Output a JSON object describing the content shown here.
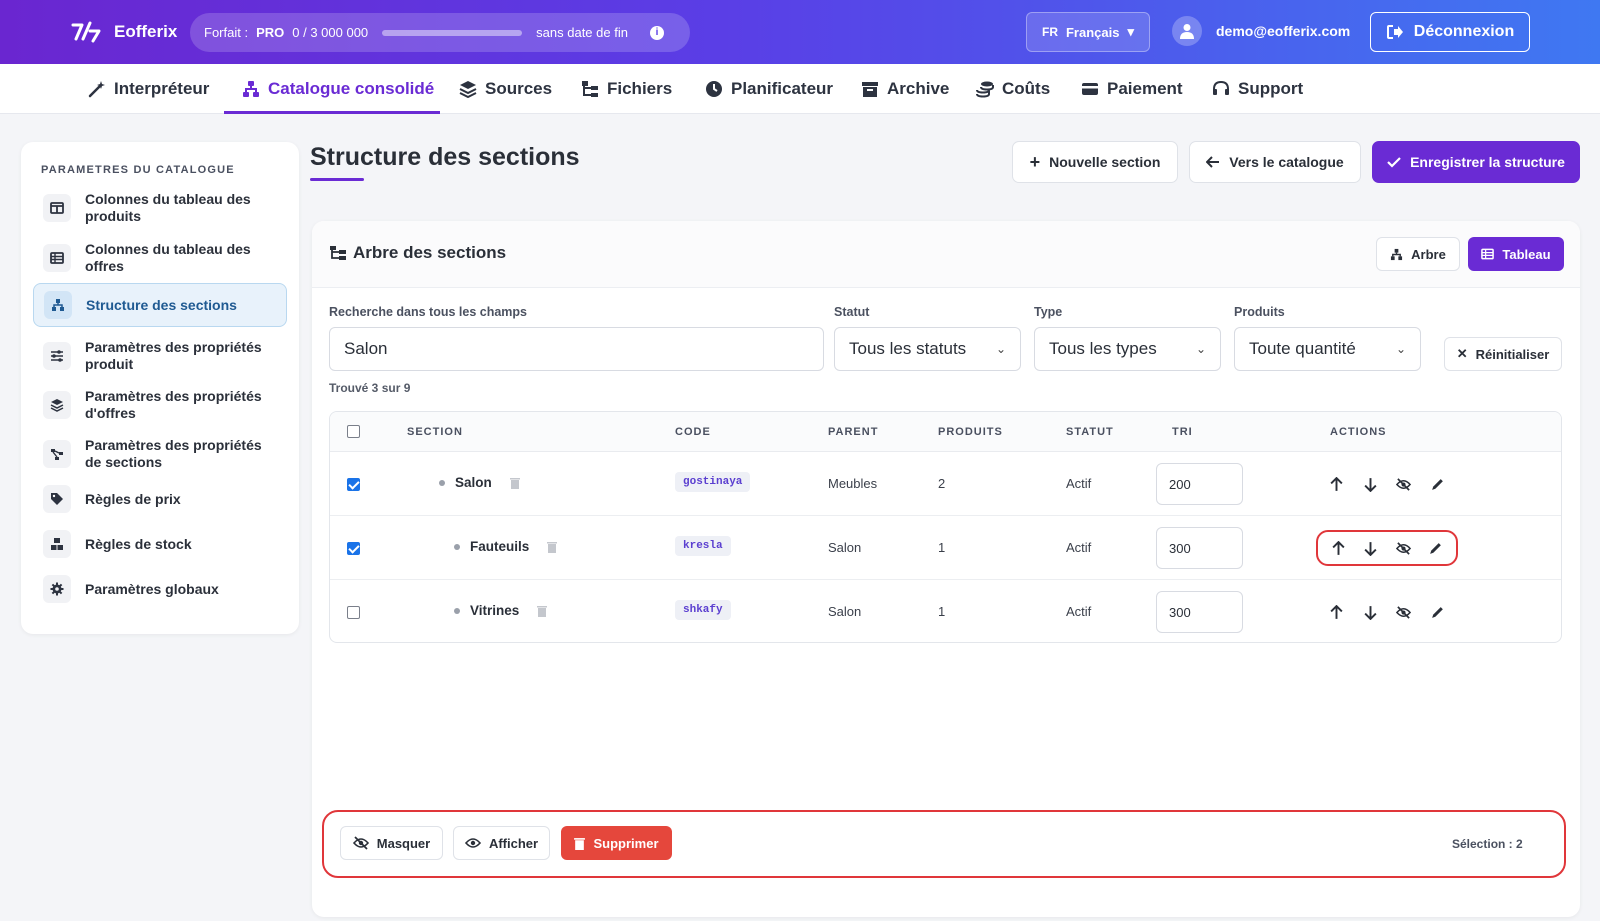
{
  "app": {
    "name": "Eofferix"
  },
  "plan": {
    "label": "Forfait :",
    "tier": "PRO",
    "usage": "0 / 3 000 000",
    "usage_fraction": 0,
    "end": "sans date de fin",
    "info": "i"
  },
  "lang": {
    "code": "FR",
    "name": "Français",
    "caret": "▾"
  },
  "user": {
    "email": "demo@eofferix.com"
  },
  "logout": {
    "label": "Déconnexion"
  },
  "nav": {
    "items": [
      {
        "label": "Interpréteur",
        "icon": "magic-wand-icon"
      },
      {
        "label": "Catalogue consolidé",
        "icon": "sitemap-icon",
        "active": true
      },
      {
        "label": "Sources",
        "icon": "layers-icon"
      },
      {
        "label": "Fichiers",
        "icon": "folder-tree-icon"
      },
      {
        "label": "Planificateur",
        "icon": "clock-icon"
      },
      {
        "label": "Archive",
        "icon": "archive-icon"
      },
      {
        "label": "Coûts",
        "icon": "coins-icon"
      },
      {
        "label": "Paiement",
        "icon": "credit-card-icon"
      },
      {
        "label": "Support",
        "icon": "headset-icon"
      }
    ]
  },
  "sidebar": {
    "heading": "PARAMETRES DU CATALOGUE",
    "items": [
      {
        "label": "Colonnes du tableau des produits",
        "icon": "columns-icon"
      },
      {
        "label": "Colonnes du tableau des offres",
        "icon": "table-list-icon"
      },
      {
        "label": "Structure des sections",
        "icon": "sitemap-icon",
        "active": true
      },
      {
        "label": "Paramètres des propriétés produit",
        "icon": "sliders-icon"
      },
      {
        "label": "Paramètres des propriétés d'offres",
        "icon": "layers-icon"
      },
      {
        "label": "Paramètres des propriétés de sections",
        "icon": "diagram-icon"
      },
      {
        "label": "Règles de prix",
        "icon": "tags-icon"
      },
      {
        "label": "Règles de stock",
        "icon": "boxes-icon"
      },
      {
        "label": "Paramètres globaux",
        "icon": "gear-icon"
      }
    ]
  },
  "header": {
    "title": "Structure des sections",
    "new_section": "Nouvelle section",
    "to_catalog": "Vers le catalogue",
    "save": "Enregistrer la structure"
  },
  "panel": {
    "title": "Arbre des sections",
    "view_tree": "Arbre",
    "view_table": "Tableau"
  },
  "filters": {
    "search_label": "Recherche dans tous les champs",
    "search_value": "Salon",
    "status_label": "Statut",
    "status_value": "Tous les statuts",
    "type_label": "Type",
    "type_value": "Tous les types",
    "products_label": "Produits",
    "products_value": "Toute quantité",
    "reset": "Réinitialiser",
    "found": "Trouvé 3 sur 9"
  },
  "table": {
    "columns": [
      "SECTION",
      "CODE",
      "PARENT",
      "PRODUITS",
      "STATUT",
      "TRI",
      "ACTIONS"
    ],
    "rows": [
      {
        "checked": true,
        "name": "Salon",
        "code": "gostinaya",
        "parent": "Meubles",
        "products": "2",
        "status": "Actif",
        "sort": "200",
        "depth": 0
      },
      {
        "checked": true,
        "name": "Fauteuils",
        "code": "kresla",
        "parent": "Salon",
        "products": "1",
        "status": "Actif",
        "sort": "300",
        "depth": 1
      },
      {
        "checked": false,
        "name": "Vitrines",
        "code": "shkafy",
        "parent": "Salon",
        "products": "1",
        "status": "Actif",
        "sort": "300",
        "depth": 1
      }
    ]
  },
  "bulk": {
    "hide": "Masquer",
    "show": "Afficher",
    "delete": "Supprimer",
    "selection": "Sélection : 2"
  },
  "colors": {
    "accent": "#6a2bd4",
    "danger": "#e5473c",
    "highlight": "#e0363a"
  }
}
